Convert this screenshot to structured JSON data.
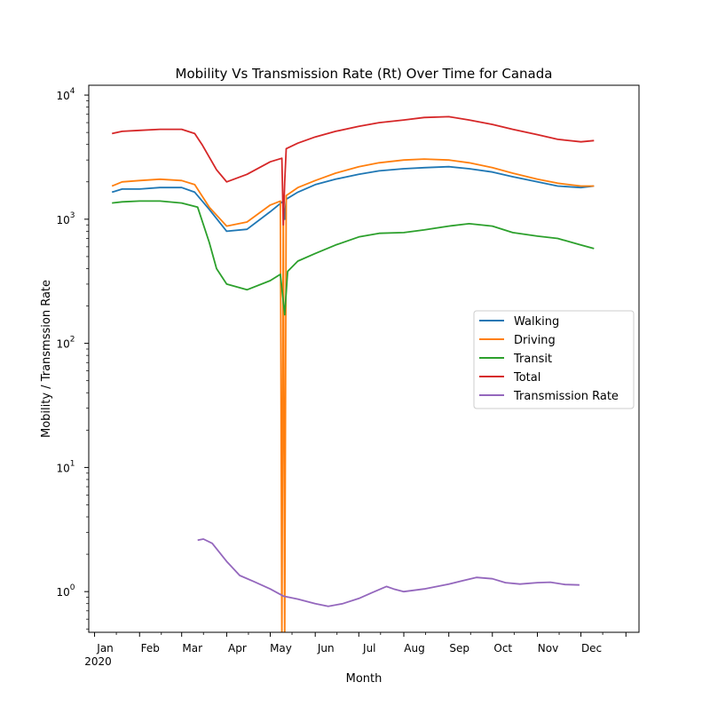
{
  "chart_data": {
    "type": "line",
    "title": "Mobility Vs Transmission Rate (Rt) Over Time for Canada",
    "xlabel": "Month",
    "ylabel": "Mobility / Transmssion Rate",
    "yscale": "log",
    "ylim": [
      0.47,
      12000
    ],
    "xlim": [
      "2019-12-28",
      "2021-01-10"
    ],
    "x_tick_labels": [
      "Jan",
      "Feb",
      "Mar",
      "Apr",
      "May",
      "Jun",
      "Jul",
      "Aug",
      "Sep",
      "Oct",
      "Nov",
      "Dec"
    ],
    "x_tick_dates": [
      "2020-01-01",
      "2020-02-01",
      "2020-03-01",
      "2020-04-01",
      "2020-05-01",
      "2020-06-01",
      "2020-07-01",
      "2020-08-01",
      "2020-09-01",
      "2020-10-01",
      "2020-11-01",
      "2020-12-01"
    ],
    "x_year_label": "2020",
    "y_ticks": [
      {
        "value": 1,
        "base": "10",
        "exp": "0"
      },
      {
        "value": 10,
        "base": "10",
        "exp": "1"
      },
      {
        "value": 100,
        "base": "10",
        "exp": "2"
      },
      {
        "value": 1000,
        "base": "10",
        "exp": "3"
      },
      {
        "value": 10000,
        "base": "10",
        "exp": "4"
      }
    ],
    "legend_position": "center-right",
    "series": [
      {
        "name": "Walking",
        "color": "#1f77b4",
        "x": [
          "2020-01-13",
          "2020-01-20",
          "2020-02-01",
          "2020-02-15",
          "2020-03-01",
          "2020-03-10",
          "2020-03-20",
          "2020-04-01",
          "2020-04-15",
          "2020-05-01",
          "2020-05-10",
          "2020-05-11",
          "2020-05-12",
          "2020-05-20",
          "2020-06-01",
          "2020-06-15",
          "2020-07-01",
          "2020-07-15",
          "2020-08-01",
          "2020-08-15",
          "2020-09-01",
          "2020-09-15",
          "2020-10-01",
          "2020-10-15",
          "2020-11-01",
          "2020-11-15",
          "2020-12-01",
          "2020-12-10"
        ],
        "y": [
          1650,
          1750,
          1750,
          1800,
          1800,
          1650,
          1200,
          800,
          830,
          1150,
          1400,
          1000,
          1450,
          1650,
          1900,
          2100,
          2300,
          2450,
          2550,
          2600,
          2650,
          2550,
          2400,
          2200,
          2000,
          1850,
          1800,
          1850
        ]
      },
      {
        "name": "Driving",
        "color": "#ff7f0e",
        "x": [
          "2020-01-13",
          "2020-01-20",
          "2020-02-01",
          "2020-02-15",
          "2020-03-01",
          "2020-03-10",
          "2020-03-20",
          "2020-04-01",
          "2020-04-15",
          "2020-05-01",
          "2020-05-08",
          "2020-05-09",
          "2020-05-10",
          "2020-05-11",
          "2020-05-12",
          "2020-05-20",
          "2020-06-01",
          "2020-06-15",
          "2020-07-01",
          "2020-07-15",
          "2020-08-01",
          "2020-08-15",
          "2020-09-01",
          "2020-09-15",
          "2020-10-01",
          "2020-10-15",
          "2020-11-01",
          "2020-11-15",
          "2020-12-01",
          "2020-12-10"
        ],
        "y": [
          1850,
          2000,
          2050,
          2100,
          2050,
          1900,
          1250,
          880,
          950,
          1300,
          1400,
          0.4,
          1450,
          0.4,
          1550,
          1800,
          2050,
          2350,
          2650,
          2850,
          3000,
          3050,
          3000,
          2850,
          2600,
          2350,
          2100,
          1950,
          1850,
          1850
        ]
      },
      {
        "name": "Transit",
        "color": "#2ca02c",
        "x": [
          "2020-01-13",
          "2020-01-20",
          "2020-02-01",
          "2020-02-15",
          "2020-03-01",
          "2020-03-12",
          "2020-03-20",
          "2020-03-25",
          "2020-04-01",
          "2020-04-15",
          "2020-05-01",
          "2020-05-08",
          "2020-05-11",
          "2020-05-13",
          "2020-05-20",
          "2020-06-01",
          "2020-06-15",
          "2020-07-01",
          "2020-07-15",
          "2020-08-01",
          "2020-08-15",
          "2020-09-01",
          "2020-09-15",
          "2020-10-01",
          "2020-10-15",
          "2020-11-01",
          "2020-11-15",
          "2020-12-01",
          "2020-12-10"
        ],
        "y": [
          1350,
          1380,
          1400,
          1400,
          1350,
          1250,
          650,
          400,
          300,
          270,
          320,
          360,
          170,
          380,
          460,
          530,
          620,
          720,
          770,
          780,
          820,
          880,
          920,
          880,
          780,
          730,
          700,
          620,
          580
        ]
      },
      {
        "name": "Total",
        "color": "#d62728",
        "x": [
          "2020-01-13",
          "2020-01-20",
          "2020-02-01",
          "2020-02-15",
          "2020-03-01",
          "2020-03-10",
          "2020-03-15",
          "2020-03-25",
          "2020-04-01",
          "2020-04-15",
          "2020-05-01",
          "2020-05-09",
          "2020-05-10",
          "2020-05-11",
          "2020-05-12",
          "2020-05-20",
          "2020-06-01",
          "2020-06-15",
          "2020-07-01",
          "2020-07-15",
          "2020-08-01",
          "2020-08-15",
          "2020-09-01",
          "2020-09-15",
          "2020-10-01",
          "2020-10-15",
          "2020-11-01",
          "2020-11-15",
          "2020-12-01",
          "2020-12-10"
        ],
        "y": [
          4900,
          5100,
          5200,
          5300,
          5300,
          4900,
          4000,
          2500,
          2000,
          2300,
          2900,
          3100,
          900,
          2000,
          3700,
          4100,
          4600,
          5100,
          5600,
          6000,
          6300,
          6600,
          6700,
          6300,
          5800,
          5300,
          4800,
          4400,
          4200,
          4300
        ]
      },
      {
        "name": "Transmission Rate",
        "color": "#9467bd",
        "x": [
          "2020-03-12",
          "2020-03-16",
          "2020-03-22",
          "2020-04-01",
          "2020-04-10",
          "2020-04-20",
          "2020-05-01",
          "2020-05-10",
          "2020-05-20",
          "2020-06-01",
          "2020-06-10",
          "2020-06-20",
          "2020-07-01",
          "2020-07-10",
          "2020-07-20",
          "2020-07-25",
          "2020-08-01",
          "2020-08-15",
          "2020-09-01",
          "2020-09-10",
          "2020-09-20",
          "2020-10-01",
          "2020-10-10",
          "2020-10-20",
          "2020-11-01",
          "2020-11-10",
          "2020-11-20",
          "2020-11-30"
        ],
        "y": [
          2.6,
          2.65,
          2.45,
          1.75,
          1.35,
          1.2,
          1.05,
          0.92,
          0.87,
          0.8,
          0.76,
          0.8,
          0.88,
          0.98,
          1.1,
          1.05,
          1.0,
          1.05,
          1.15,
          1.22,
          1.3,
          1.27,
          1.18,
          1.15,
          1.18,
          1.19,
          1.14,
          1.13
        ]
      }
    ]
  }
}
